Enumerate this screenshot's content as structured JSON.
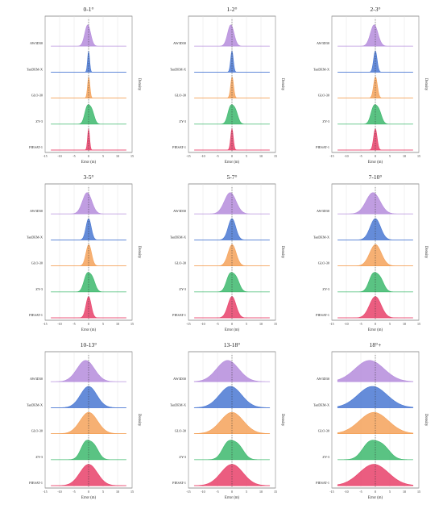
{
  "chart_data": [
    {
      "type": "ridgeline",
      "title": "0-1°",
      "xlabel": "Error (m)",
      "ylabel": "Density",
      "xlim": [
        -15,
        15
      ],
      "xticks": [
        -15,
        -10,
        -5,
        0,
        5,
        10,
        15
      ],
      "categories": [
        "AW3D30",
        "TanDEM-X",
        "GLO-30",
        "ZY-3",
        "PIESAT-1"
      ],
      "series": [
        {
          "name": "AW3D30",
          "color": "#b58cdc",
          "mean": -0.3,
          "sd": 1.0,
          "range": [
            -13,
            13
          ]
        },
        {
          "name": "TanDEM-X",
          "color": "#4a78d2",
          "mean": 0.0,
          "sd": 0.35,
          "range": [
            -13,
            13
          ]
        },
        {
          "name": "GLO-30",
          "color": "#f4a25a",
          "mean": 0.05,
          "sd": 0.4,
          "range": [
            -13,
            13
          ]
        },
        {
          "name": "ZY-3",
          "color": "#3db86d",
          "mean": 0.2,
          "sd": 1.6,
          "range": [
            -13,
            13
          ]
        },
        {
          "name": "PIESAT-1",
          "color": "#e8416a",
          "mean": 0.0,
          "sd": 0.35,
          "range": [
            -13,
            13
          ]
        }
      ]
    },
    {
      "type": "ridgeline",
      "title": "1-2°",
      "xlabel": "Error (m)",
      "ylabel": "Density",
      "xlim": [
        -15,
        15
      ],
      "xticks": [
        -15,
        -10,
        -5,
        0,
        5,
        10,
        15
      ],
      "categories": [
        "AW3D30",
        "TanDEM-X",
        "GLO-30",
        "ZY-3",
        "PIESAT-1"
      ],
      "series": [
        {
          "name": "AW3D30",
          "color": "#b58cdc",
          "mean": -0.4,
          "sd": 1.1,
          "range": [
            -13,
            13
          ]
        },
        {
          "name": "TanDEM-X",
          "color": "#4a78d2",
          "mean": 0.0,
          "sd": 0.45,
          "range": [
            -13,
            13
          ]
        },
        {
          "name": "GLO-30",
          "color": "#f4a25a",
          "mean": 0.05,
          "sd": 0.5,
          "range": [
            -13,
            13
          ]
        },
        {
          "name": "ZY-3",
          "color": "#3db86d",
          "mean": 0.2,
          "sd": 1.7,
          "range": [
            -13,
            13
          ]
        },
        {
          "name": "PIESAT-1",
          "color": "#e8416a",
          "mean": 0.0,
          "sd": 0.45,
          "range": [
            -13,
            13
          ]
        }
      ]
    },
    {
      "type": "ridgeline",
      "title": "2-3°",
      "xlabel": "Error (m)",
      "ylabel": "Density",
      "xlim": [
        -15,
        15
      ],
      "xticks": [
        -15,
        -10,
        -5,
        0,
        5,
        10,
        15
      ],
      "categories": [
        "AW3D30",
        "TanDEM-X",
        "GLO-30",
        "ZY-3",
        "PIESAT-1"
      ],
      "series": [
        {
          "name": "AW3D30",
          "color": "#b58cdc",
          "mean": -0.4,
          "sd": 1.3,
          "range": [
            -13,
            13
          ]
        },
        {
          "name": "TanDEM-X",
          "color": "#4a78d2",
          "mean": 0.0,
          "sd": 0.6,
          "range": [
            -13,
            13
          ]
        },
        {
          "name": "GLO-30",
          "color": "#f4a25a",
          "mean": 0.05,
          "sd": 0.65,
          "range": [
            -13,
            13
          ]
        },
        {
          "name": "ZY-3",
          "color": "#3db86d",
          "mean": 0.2,
          "sd": 1.8,
          "range": [
            -13,
            13
          ]
        },
        {
          "name": "PIESAT-1",
          "color": "#e8416a",
          "mean": 0.0,
          "sd": 0.6,
          "range": [
            -13,
            13
          ]
        }
      ]
    },
    {
      "type": "ridgeline",
      "title": "3-5°",
      "xlabel": "Error (m)",
      "ylabel": "Density",
      "xlim": [
        -15,
        15
      ],
      "xticks": [
        -15,
        -10,
        -5,
        0,
        5,
        10,
        15
      ],
      "categories": [
        "AW3D30",
        "TanDEM-X",
        "GLO-30",
        "ZY-3",
        "PIESAT-1"
      ],
      "series": [
        {
          "name": "AW3D30",
          "color": "#b58cdc",
          "mean": -0.5,
          "sd": 1.6,
          "range": [
            -13,
            13
          ]
        },
        {
          "name": "TanDEM-X",
          "color": "#4a78d2",
          "mean": 0.0,
          "sd": 0.9,
          "range": [
            -13,
            13
          ]
        },
        {
          "name": "GLO-30",
          "color": "#f4a25a",
          "mean": 0.05,
          "sd": 0.95,
          "range": [
            -13,
            13
          ]
        },
        {
          "name": "ZY-3",
          "color": "#3db86d",
          "mean": 0.2,
          "sd": 1.9,
          "range": [
            -13,
            13
          ]
        },
        {
          "name": "PIESAT-1",
          "color": "#e8416a",
          "mean": 0.0,
          "sd": 0.9,
          "range": [
            -13,
            13
          ]
        }
      ]
    },
    {
      "type": "ridgeline",
      "title": "5-7°",
      "xlabel": "Error (m)",
      "ylabel": "Density",
      "xlim": [
        -15,
        15
      ],
      "xticks": [
        -15,
        -10,
        -5,
        0,
        5,
        10,
        15
      ],
      "categories": [
        "AW3D30",
        "TanDEM-X",
        "GLO-30",
        "ZY-3",
        "PIESAT-1"
      ],
      "series": [
        {
          "name": "AW3D30",
          "color": "#b58cdc",
          "mean": -0.6,
          "sd": 2.0,
          "range": [
            -13,
            13
          ]
        },
        {
          "name": "TanDEM-X",
          "color": "#4a78d2",
          "mean": 0.0,
          "sd": 1.3,
          "range": [
            -13,
            13
          ]
        },
        {
          "name": "GLO-30",
          "color": "#f4a25a",
          "mean": 0.05,
          "sd": 1.4,
          "range": [
            -13,
            13
          ]
        },
        {
          "name": "ZY-3",
          "color": "#3db86d",
          "mean": 0.2,
          "sd": 2.2,
          "range": [
            -13,
            13
          ]
        },
        {
          "name": "PIESAT-1",
          "color": "#e8416a",
          "mean": 0.0,
          "sd": 1.4,
          "range": [
            -13,
            13
          ]
        }
      ]
    },
    {
      "type": "ridgeline",
      "title": "7-10°",
      "xlabel": "Error (m)",
      "ylabel": "Density",
      "xlim": [
        -15,
        15
      ],
      "xticks": [
        -15,
        -10,
        -5,
        0,
        5,
        10,
        15
      ],
      "categories": [
        "AW3D30",
        "TanDEM-X",
        "GLO-30",
        "ZY-3",
        "PIESAT-1"
      ],
      "series": [
        {
          "name": "AW3D30",
          "color": "#b58cdc",
          "mean": -0.8,
          "sd": 2.4,
          "range": [
            -13,
            13
          ]
        },
        {
          "name": "TanDEM-X",
          "color": "#4a78d2",
          "mean": 0.0,
          "sd": 1.8,
          "range": [
            -13,
            13
          ]
        },
        {
          "name": "GLO-30",
          "color": "#f4a25a",
          "mean": 0.05,
          "sd": 2.0,
          "range": [
            -13,
            13
          ]
        },
        {
          "name": "ZY-3",
          "color": "#3db86d",
          "mean": 0.2,
          "sd": 2.5,
          "range": [
            -13,
            13
          ]
        },
        {
          "name": "PIESAT-1",
          "color": "#e8416a",
          "mean": 0.0,
          "sd": 2.0,
          "range": [
            -13,
            13
          ]
        }
      ]
    },
    {
      "type": "ridgeline",
      "title": "10-13°",
      "xlabel": "Error (m)",
      "ylabel": "Density",
      "xlim": [
        -15,
        15
      ],
      "xticks": [
        -15,
        -10,
        -5,
        0,
        5,
        10,
        15
      ],
      "categories": [
        "AW3D30",
        "TanDEM-X",
        "GLO-30",
        "ZY-3",
        "PIESAT-1"
      ],
      "series": [
        {
          "name": "AW3D30",
          "color": "#b58cdc",
          "mean": -1.0,
          "sd": 3.0,
          "range": [
            -13,
            13
          ]
        },
        {
          "name": "TanDEM-X",
          "color": "#4a78d2",
          "mean": 0.0,
          "sd": 2.8,
          "range": [
            -13,
            13
          ]
        },
        {
          "name": "GLO-30",
          "color": "#f4a25a",
          "mean": 0.05,
          "sd": 3.0,
          "range": [
            -13,
            13
          ]
        },
        {
          "name": "ZY-3",
          "color": "#3db86d",
          "mean": 0.2,
          "sd": 3.0,
          "range": [
            -13,
            13
          ]
        },
        {
          "name": "PIESAT-1",
          "color": "#e8416a",
          "mean": 0.0,
          "sd": 3.0,
          "range": [
            -13,
            13
          ]
        }
      ]
    },
    {
      "type": "ridgeline",
      "title": "13-18°",
      "xlabel": "Error (m)",
      "ylabel": "Density",
      "xlim": [
        -15,
        15
      ],
      "xticks": [
        -15,
        -10,
        -5,
        0,
        5,
        10,
        15
      ],
      "categories": [
        "AW3D30",
        "TanDEM-X",
        "GLO-30",
        "ZY-3",
        "PIESAT-1"
      ],
      "series": [
        {
          "name": "AW3D30",
          "color": "#b58cdc",
          "mean": -1.5,
          "sd": 3.8,
          "range": [
            -13,
            13
          ]
        },
        {
          "name": "TanDEM-X",
          "color": "#4a78d2",
          "mean": -0.5,
          "sd": 3.8,
          "range": [
            -13,
            13
          ]
        },
        {
          "name": "GLO-30",
          "color": "#f4a25a",
          "mean": 0.0,
          "sd": 3.9,
          "range": [
            -13,
            13
          ]
        },
        {
          "name": "ZY-3",
          "color": "#3db86d",
          "mean": 0.2,
          "sd": 3.6,
          "range": [
            -13,
            13
          ]
        },
        {
          "name": "PIESAT-1",
          "color": "#e8416a",
          "mean": 0.0,
          "sd": 3.8,
          "range": [
            -13,
            13
          ]
        }
      ]
    },
    {
      "type": "ridgeline",
      "title": "18°+",
      "xlabel": "Error (m)",
      "ylabel": "Density",
      "xlim": [
        -15,
        15
      ],
      "xticks": [
        -15,
        -10,
        -5,
        0,
        5,
        10,
        15
      ],
      "categories": [
        "AW3D30",
        "TanDEM-X",
        "GLO-30",
        "ZY-3",
        "PIESAT-1"
      ],
      "series": [
        {
          "name": "AW3D30",
          "color": "#b58cdc",
          "mean": -2.0,
          "sd": 5.0,
          "range": [
            -13,
            13
          ]
        },
        {
          "name": "TanDEM-X",
          "color": "#4a78d2",
          "mean": -1.0,
          "sd": 5.0,
          "range": [
            -13,
            13
          ]
        },
        {
          "name": "GLO-30",
          "color": "#f4a25a",
          "mean": -0.5,
          "sd": 5.0,
          "range": [
            -13,
            13
          ]
        },
        {
          "name": "ZY-3",
          "color": "#3db86d",
          "mean": 0.0,
          "sd": 4.6,
          "range": [
            -13,
            13
          ]
        },
        {
          "name": "PIESAT-1",
          "color": "#e8416a",
          "mean": -0.5,
          "sd": 5.0,
          "range": [
            -13,
            13
          ]
        }
      ]
    }
  ]
}
